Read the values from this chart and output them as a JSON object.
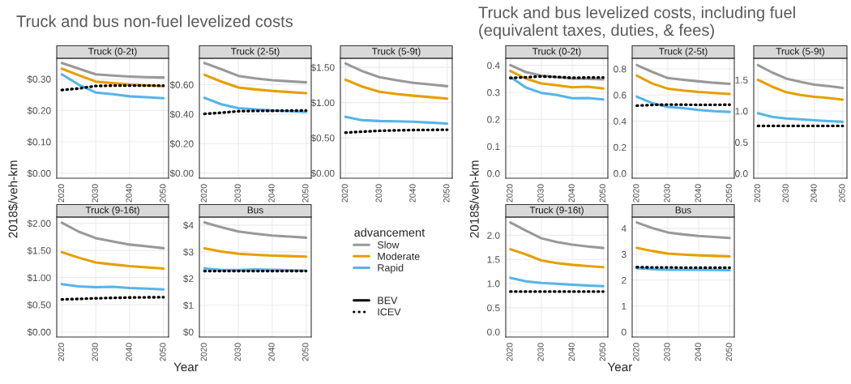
{
  "chart_data": [
    {
      "type": "line",
      "title": "Truck (0-2t)",
      "annotations": [
        "Truck and bus non-fuel levelized costs"
      ],
      "x": [
        2020,
        2025,
        2030,
        2035,
        2040,
        2045,
        2050
      ],
      "xlim": [
        2018.5,
        2051.5
      ],
      "xticks": [
        2020,
        2030,
        2040,
        2050
      ],
      "ylim": [
        -0.016,
        0.366
      ],
      "yticks": [
        {
          "value": 0,
          "label": "$0.00"
        },
        {
          "value": 0.1,
          "label": "$0.10"
        },
        {
          "value": 0.2,
          "label": "$0.20"
        },
        {
          "value": 0.3,
          "label": "$0.30"
        }
      ],
      "grid": true,
      "series": [
        {
          "color": "#999999",
          "values": [
            0.351,
            0.333,
            0.315,
            0.311,
            0.308,
            0.306,
            0.305
          ]
        },
        {
          "color": "#e69f00",
          "values": [
            0.333,
            0.312,
            0.292,
            0.287,
            0.283,
            0.28,
            0.277
          ]
        },
        {
          "color": "#56b4e9",
          "values": [
            0.315,
            0.282,
            0.257,
            0.252,
            0.245,
            0.242,
            0.239
          ]
        },
        {
          "color": "#000000",
          "line_style": "dotted",
          "values": [
            0.265,
            0.27,
            0.278,
            0.279,
            0.279,
            0.279,
            0.279
          ]
        }
      ]
    },
    {
      "type": "line",
      "title": "Truck (2-5t)",
      "x": [
        2020,
        2025,
        2030,
        2035,
        2040,
        2045,
        2050
      ],
      "xlim": [
        2018.5,
        2051.5
      ],
      "xticks": [
        2020,
        2030,
        2040,
        2050
      ],
      "ylim": [
        -0.035,
        0.779
      ],
      "yticks": [
        {
          "value": 0,
          "label": "$0.00"
        },
        {
          "value": 0.2,
          "label": "$0.20"
        },
        {
          "value": 0.4,
          "label": "$0.40"
        },
        {
          "value": 0.6,
          "label": "$0.60"
        }
      ],
      "grid": true,
      "series": [
        {
          "color": "#999999",
          "values": [
            0.747,
            0.705,
            0.66,
            0.643,
            0.63,
            0.623,
            0.616
          ]
        },
        {
          "color": "#e69f00",
          "values": [
            0.667,
            0.621,
            0.581,
            0.568,
            0.558,
            0.55,
            0.542
          ]
        },
        {
          "color": "#56b4e9",
          "values": [
            0.511,
            0.467,
            0.441,
            0.432,
            0.425,
            0.42,
            0.415
          ]
        },
        {
          "color": "#000000",
          "line_style": "dotted",
          "values": [
            0.402,
            0.41,
            0.42,
            0.422,
            0.423,
            0.424,
            0.425
          ]
        }
      ]
    },
    {
      "type": "line",
      "title": "Truck (5-9t)",
      "x": [
        2020,
        2025,
        2030,
        2035,
        2040,
        2045,
        2050
      ],
      "xlim": [
        2018.5,
        2051.5
      ],
      "xticks": [
        2020,
        2030,
        2040,
        2050
      ],
      "ylim": [
        -0.073,
        1.628
      ],
      "yticks": [
        {
          "value": 0,
          "label": "$0.00"
        },
        {
          "value": 0.5,
          "label": "$0.50"
        },
        {
          "value": 1.0,
          "label": "$1.00"
        },
        {
          "value": 1.5,
          "label": "$1.50"
        }
      ],
      "grid": true,
      "series": [
        {
          "color": "#999999",
          "values": [
            1.555,
            1.445,
            1.361,
            1.318,
            1.281,
            1.258,
            1.233
          ]
        },
        {
          "color": "#e69f00",
          "values": [
            1.325,
            1.226,
            1.153,
            1.123,
            1.098,
            1.078,
            1.057
          ]
        },
        {
          "color": "#56b4e9",
          "values": [
            0.798,
            0.75,
            0.739,
            0.735,
            0.728,
            0.716,
            0.703
          ]
        },
        {
          "color": "#000000",
          "line_style": "dotted",
          "values": [
            0.574,
            0.588,
            0.6,
            0.606,
            0.611,
            0.613,
            0.615
          ]
        }
      ]
    },
    {
      "type": "line",
      "title": "Truck (9-16t)",
      "ylabel": "2018$/veh-km",
      "x": [
        2020,
        2025,
        2030,
        2035,
        2040,
        2045,
        2050
      ],
      "xlim": [
        2018.5,
        2051.5
      ],
      "xticks": [
        2020,
        2030,
        2040,
        2050
      ],
      "ylim": [
        -0.093,
        2.113
      ],
      "yticks": [
        {
          "value": 0,
          "label": "$0.00"
        },
        {
          "value": 0.5,
          "label": "$0.50"
        },
        {
          "value": 1.0,
          "label": "$1.00"
        },
        {
          "value": 1.5,
          "label": "$1.50"
        },
        {
          "value": 2.0,
          "label": "$2.00"
        }
      ],
      "grid": true,
      "series": [
        {
          "color": "#999999",
          "values": [
            2.01,
            1.845,
            1.727,
            1.665,
            1.608,
            1.575,
            1.541
          ]
        },
        {
          "color": "#e69f00",
          "values": [
            1.469,
            1.366,
            1.278,
            1.243,
            1.211,
            1.188,
            1.165
          ]
        },
        {
          "color": "#56b4e9",
          "values": [
            0.881,
            0.84,
            0.825,
            0.83,
            0.809,
            0.797,
            0.784
          ]
        },
        {
          "color": "#000000",
          "line_style": "dotted",
          "values": [
            0.598,
            0.608,
            0.619,
            0.627,
            0.634,
            0.637,
            0.639
          ]
        }
      ]
    },
    {
      "type": "line",
      "title": "Bus",
      "xlabel": "Year",
      "legend": "right",
      "legend_title": "advancement",
      "annotations": [
        "BEV"
      ],
      "x": [
        2020,
        2025,
        2030,
        2035,
        2040,
        2045,
        2050
      ],
      "xlim": [
        2018.5,
        2051.5
      ],
      "xticks": [
        2020,
        2030,
        2040,
        2050
      ],
      "ylim": [
        -0.19,
        4.3
      ],
      "yticks": [
        {
          "value": 0,
          "label": "$0"
        },
        {
          "value": 1,
          "label": "$1"
        },
        {
          "value": 2,
          "label": "$2"
        },
        {
          "value": 3,
          "label": "$3"
        },
        {
          "value": 4,
          "label": "$4"
        }
      ],
      "grid": true,
      "series": [
        {
          "name": "Slow",
          "color": "#999999",
          "values": [
            4.1,
            3.92,
            3.76,
            3.68,
            3.61,
            3.57,
            3.53
          ]
        },
        {
          "name": "Moderate",
          "color": "#e69f00",
          "values": [
            3.13,
            3.01,
            2.93,
            2.89,
            2.86,
            2.84,
            2.82
          ]
        },
        {
          "name": "Rapid",
          "color": "#56b4e9",
          "values": [
            2.38,
            2.32,
            2.32,
            2.34,
            2.33,
            2.31,
            2.3
          ]
        },
        {
          "name": "ICEV",
          "color": "#000000",
          "line_style": "dotted",
          "values": [
            2.28,
            2.28,
            2.28,
            2.28,
            2.28,
            2.28,
            2.28
          ]
        }
      ]
    },
    {
      "type": "line",
      "title": "Truck (0-2t)",
      "annotations": [
        "Truck and bus levelized costs, including fuel\n(equivalent taxes, duties, & fees)"
      ],
      "x": [
        2020,
        2025,
        2030,
        2035,
        2040,
        2045,
        2050
      ],
      "xlim": [
        2018.5,
        2051.5
      ],
      "xticks": [
        2020,
        2030,
        2040,
        2050
      ],
      "ylim": [
        -0.018,
        0.426
      ],
      "yticks": [
        {
          "value": 0,
          "label": "0.0"
        },
        {
          "value": 0.1,
          "label": "0.1"
        },
        {
          "value": 0.2,
          "label": "0.2"
        },
        {
          "value": 0.3,
          "label": "0.3"
        },
        {
          "value": 0.4,
          "label": "0.4"
        }
      ],
      "grid": true,
      "series": [
        {
          "color": "#999999",
          "values": [
            0.401,
            0.375,
            0.362,
            0.356,
            0.351,
            0.35,
            0.348
          ]
        },
        {
          "color": "#e69f00",
          "values": [
            0.379,
            0.351,
            0.333,
            0.326,
            0.319,
            0.321,
            0.314
          ]
        },
        {
          "color": "#56b4e9",
          "values": [
            0.357,
            0.318,
            0.298,
            0.29,
            0.278,
            0.279,
            0.274
          ]
        },
        {
          "color": "#000000",
          "line_style": "dotted",
          "values": [
            0.353,
            0.356,
            0.359,
            0.357,
            0.354,
            0.355,
            0.355
          ]
        }
      ]
    },
    {
      "type": "line",
      "title": "Truck (2-5t)",
      "x": [
        2020,
        2025,
        2030,
        2035,
        2040,
        2045,
        2050
      ],
      "xlim": [
        2018.5,
        2051.5
      ],
      "xticks": [
        2020,
        2030,
        2040,
        2050
      ],
      "ylim": [
        -0.037,
        0.881
      ],
      "yticks": [
        {
          "value": 0,
          "label": "0.0"
        },
        {
          "value": 0.2,
          "label": "0.2"
        },
        {
          "value": 0.4,
          "label": "0.4"
        },
        {
          "value": 0.6,
          "label": "0.6"
        },
        {
          "value": 0.8,
          "label": "0.8"
        }
      ],
      "grid": true,
      "series": [
        {
          "color": "#999999",
          "values": [
            0.829,
            0.777,
            0.73,
            0.717,
            0.705,
            0.694,
            0.686
          ]
        },
        {
          "color": "#e69f00",
          "values": [
            0.748,
            0.688,
            0.649,
            0.635,
            0.624,
            0.616,
            0.608
          ]
        },
        {
          "color": "#56b4e9",
          "values": [
            0.587,
            0.538,
            0.509,
            0.5,
            0.486,
            0.476,
            0.471
          ]
        },
        {
          "color": "#000000",
          "line_style": "dotted",
          "values": [
            0.519,
            0.524,
            0.527,
            0.526,
            0.525,
            0.525,
            0.526
          ]
        }
      ]
    },
    {
      "type": "line",
      "title": "Truck (5-9t)",
      "x": [
        2020,
        2025,
        2030,
        2035,
        2040,
        2045,
        2050
      ],
      "xlim": [
        2018.5,
        2051.5
      ],
      "xticks": [
        2020,
        2030,
        2040,
        2050
      ],
      "ylim": [
        -0.077,
        1.845
      ],
      "yticks": [
        {
          "value": 0,
          "label": "0.0"
        },
        {
          "value": 0.5,
          "label": "0.5"
        },
        {
          "value": 1.0,
          "label": "1.0"
        },
        {
          "value": 1.5,
          "label": "1.5"
        }
      ],
      "grid": true,
      "series": [
        {
          "color": "#999999",
          "values": [
            1.736,
            1.618,
            1.521,
            1.468,
            1.423,
            1.399,
            1.371
          ]
        },
        {
          "color": "#e69f00",
          "values": [
            1.5,
            1.391,
            1.302,
            1.257,
            1.229,
            1.209,
            1.184
          ]
        },
        {
          "color": "#56b4e9",
          "values": [
            0.965,
            0.908,
            0.88,
            0.868,
            0.852,
            0.839,
            0.827
          ]
        },
        {
          "color": "#000000",
          "line_style": "dotted",
          "values": [
            0.762,
            0.762,
            0.762,
            0.762,
            0.762,
            0.762,
            0.762
          ]
        }
      ]
    },
    {
      "type": "line",
      "title": "Truck (9-16t)",
      "ylabel": "2018$/veh-km",
      "x": [
        2020,
        2025,
        2030,
        2035,
        2040,
        2045,
        2050
      ],
      "xlim": [
        2018.5,
        2051.5
      ],
      "xticks": [
        2020,
        2030,
        2040,
        2050
      ],
      "ylim": [
        -0.106,
        2.375
      ],
      "yticks": [
        {
          "value": 0,
          "label": "0.0"
        },
        {
          "value": 0.5,
          "label": "0.5"
        },
        {
          "value": 1.0,
          "label": "1.0"
        },
        {
          "value": 1.5,
          "label": "1.5"
        },
        {
          "value": 2.0,
          "label": "2.0"
        }
      ],
      "grid": true,
      "series": [
        {
          "color": "#999999",
          "values": [
            2.264,
            2.095,
            1.937,
            1.858,
            1.805,
            1.768,
            1.736
          ]
        },
        {
          "color": "#e69f00",
          "values": [
            1.71,
            1.604,
            1.478,
            1.425,
            1.388,
            1.362,
            1.34
          ]
        },
        {
          "color": "#56b4e9",
          "values": [
            1.119,
            1.045,
            1.013,
            0.997,
            0.976,
            0.96,
            0.945
          ]
        },
        {
          "color": "#000000",
          "line_style": "dotted",
          "values": [
            0.834,
            0.834,
            0.834,
            0.834,
            0.834,
            0.834,
            0.834
          ]
        }
      ]
    },
    {
      "type": "line",
      "title": "Bus",
      "xlabel": "Year",
      "x": [
        2020,
        2025,
        2030,
        2035,
        2040,
        2045,
        2050
      ],
      "xlim": [
        2018.5,
        2051.5
      ],
      "xticks": [
        2020,
        2030,
        2040,
        2050
      ],
      "ylim": [
        -0.197,
        4.433
      ],
      "yticks": [
        0,
        1,
        2,
        3,
        4
      ],
      "grid": true,
      "series": [
        {
          "color": "#999999",
          "values": [
            4.227,
            4.01,
            3.842,
            3.764,
            3.704,
            3.665,
            3.626
          ]
        },
        {
          "color": "#e69f00",
          "values": [
            3.241,
            3.123,
            3.025,
            2.985,
            2.956,
            2.936,
            2.916
          ]
        },
        {
          "color": "#56b4e9",
          "values": [
            2.463,
            2.424,
            2.404,
            2.4,
            2.4,
            2.39,
            2.384
          ]
        },
        {
          "color": "#000000",
          "line_style": "dotted",
          "values": [
            2.502,
            2.49,
            2.49,
            2.48,
            2.48,
            2.48,
            2.48
          ]
        }
      ]
    }
  ]
}
